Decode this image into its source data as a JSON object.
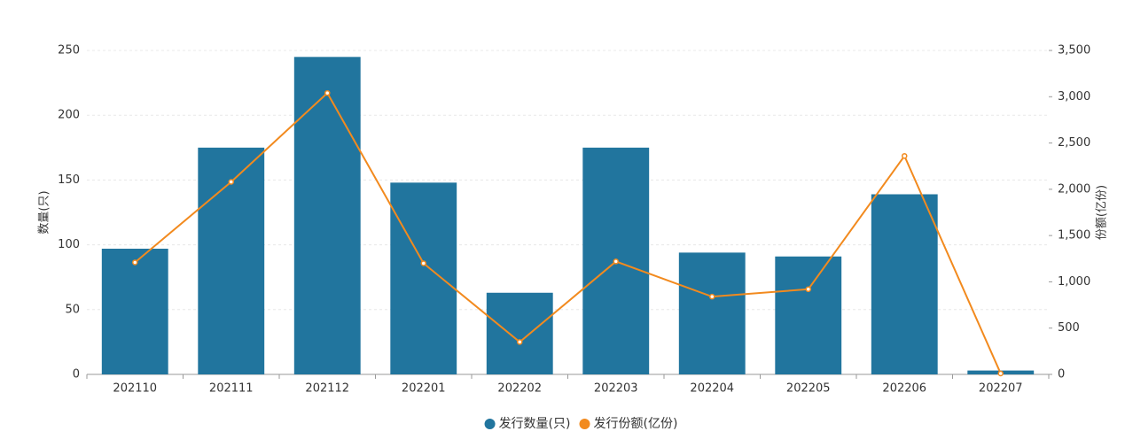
{
  "chart_data": {
    "type": "bar",
    "categories": [
      "202110",
      "202111",
      "202112",
      "202201",
      "202202",
      "202203",
      "202204",
      "202205",
      "202206",
      "202207"
    ],
    "series": [
      {
        "name": "发行数量(只)",
        "type": "bar",
        "color": "#21759e",
        "values": [
          97,
          175,
          245,
          148,
          63,
          175,
          94,
          91,
          139,
          3
        ]
      },
      {
        "name": "发行份额(亿份)",
        "type": "line",
        "axis": "y2",
        "color": "#f28a1e",
        "values": [
          1210,
          2080,
          3040,
          1200,
          350,
          1220,
          840,
          920,
          2360,
          10
        ]
      }
    ],
    "ylabel": "数量(只)",
    "y2label": "份额(亿份)",
    "ylim": [
      0,
      250
    ],
    "yticks": [
      0,
      50,
      100,
      150,
      200,
      250
    ],
    "y2lim": [
      0,
      3500
    ],
    "y2ticks": [
      0,
      500,
      {
        "value": 1000,
        "label": "1,000"
      },
      {
        "value": 1500,
        "label": "1,500"
      },
      {
        "value": 2000,
        "label": "2,000"
      },
      {
        "value": 2500,
        "label": "2,500"
      },
      {
        "value": 3000,
        "label": "3,000"
      },
      {
        "value": 3500,
        "label": "3,500"
      }
    ],
    "grid": true,
    "legend": "bottom"
  }
}
